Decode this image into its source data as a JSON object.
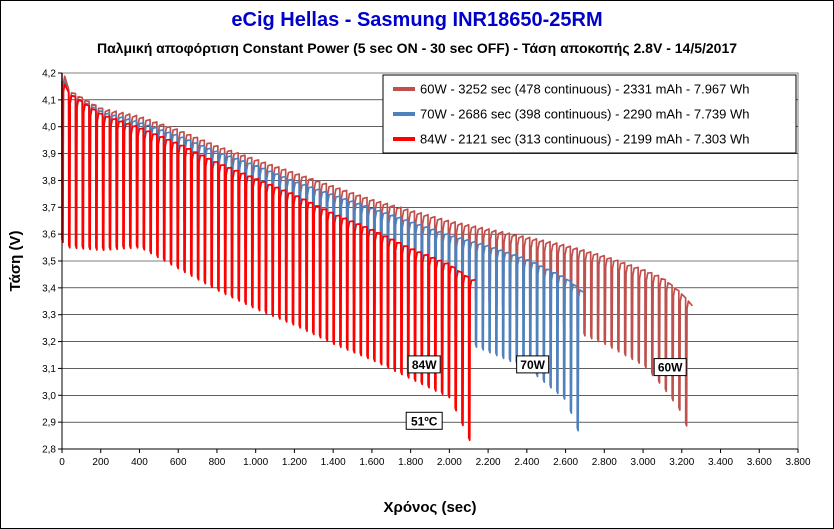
{
  "header": {
    "title": "eCig Hellas  - Sasmung INR18650-25RM",
    "subtitle": "Παλμική αποφόρτιση Constant Power (5 sec ON - 30 sec OFF) - Τάση αποκοπής 2.8V - 14/5/2017"
  },
  "chart_data": {
    "type": "line",
    "xlabel": "Χρόνος (sec)",
    "ylabel": "Τάση (V)",
    "xlim": [
      0,
      3800
    ],
    "ylim": [
      2.8,
      4.2
    ],
    "x_ticks": [
      "0",
      "200",
      "400",
      "600",
      "800",
      "1.000",
      "1.200",
      "1.400",
      "1.600",
      "1.800",
      "2.000",
      "2.200",
      "2.400",
      "2.600",
      "2.800",
      "3.000",
      "3.200",
      "3.400",
      "3.600",
      "3.800"
    ],
    "y_ticks": [
      "2,8",
      "2,9",
      "3,0",
      "3,1",
      "3,2",
      "3,3",
      "3,4",
      "3,5",
      "3,6",
      "3,7",
      "3,8",
      "3,9",
      "4,0",
      "4,1",
      "4,2"
    ],
    "grid": "horizontal",
    "legend_position": "top-right",
    "pulse_period_sec": 35,
    "series": [
      {
        "name": "60W - 3252 sec (478 continuous) - 2331 mAh - 7.967 Wh",
        "color": "#c0504d",
        "end_time_sec": 3252,
        "rest_curve": [
          [
            0,
            4.2
          ],
          [
            30,
            4.14
          ],
          [
            200,
            4.07
          ],
          [
            400,
            4.04
          ],
          [
            600,
            3.99
          ],
          [
            800,
            3.93
          ],
          [
            1000,
            3.88
          ],
          [
            1200,
            3.83
          ],
          [
            1400,
            3.78
          ],
          [
            1600,
            3.73
          ],
          [
            1800,
            3.69
          ],
          [
            2000,
            3.65
          ],
          [
            2200,
            3.62
          ],
          [
            2400,
            3.59
          ],
          [
            2600,
            3.56
          ],
          [
            2800,
            3.52
          ],
          [
            3000,
            3.47
          ],
          [
            3100,
            3.44
          ],
          [
            3200,
            3.38
          ],
          [
            3270,
            3.32
          ]
        ],
        "load_curve": [
          [
            0,
            3.95
          ],
          [
            30,
            3.93
          ],
          [
            200,
            3.86
          ],
          [
            400,
            3.82
          ],
          [
            600,
            3.76
          ],
          [
            800,
            3.7
          ],
          [
            1000,
            3.63
          ],
          [
            1200,
            3.58
          ],
          [
            1400,
            3.52
          ],
          [
            1600,
            3.47
          ],
          [
            1800,
            3.43
          ],
          [
            2000,
            3.38
          ],
          [
            2200,
            3.34
          ],
          [
            2400,
            3.3
          ],
          [
            2600,
            3.25
          ],
          [
            2800,
            3.19
          ],
          [
            3000,
            3.11
          ],
          [
            3100,
            3.03
          ],
          [
            3200,
            2.93
          ],
          [
            3250,
            2.82
          ]
        ]
      },
      {
        "name": "70W - 2686 sec (398 continuous) - 2290 mAh - 7.739 Wh",
        "color": "#4f81bd",
        "end_time_sec": 2686,
        "rest_curve": [
          [
            0,
            4.18
          ],
          [
            30,
            4.13
          ],
          [
            200,
            4.06
          ],
          [
            400,
            4.02
          ],
          [
            600,
            3.97
          ],
          [
            800,
            3.91
          ],
          [
            1000,
            3.86
          ],
          [
            1200,
            3.8
          ],
          [
            1400,
            3.75
          ],
          [
            1600,
            3.7
          ],
          [
            1800,
            3.65
          ],
          [
            2000,
            3.6
          ],
          [
            2200,
            3.56
          ],
          [
            2400,
            3.51
          ],
          [
            2600,
            3.44
          ],
          [
            2700,
            3.38
          ]
        ],
        "load_curve": [
          [
            0,
            3.87
          ],
          [
            30,
            3.82
          ],
          [
            200,
            3.74
          ],
          [
            400,
            3.7
          ],
          [
            600,
            3.65
          ],
          [
            800,
            3.58
          ],
          [
            1000,
            3.52
          ],
          [
            1200,
            3.46
          ],
          [
            1400,
            3.4
          ],
          [
            1600,
            3.34
          ],
          [
            1800,
            3.28
          ],
          [
            2000,
            3.22
          ],
          [
            2200,
            3.16
          ],
          [
            2400,
            3.1
          ],
          [
            2600,
            2.98
          ],
          [
            2686,
            2.82
          ]
        ]
      },
      {
        "name": "84W - 2121 sec (313 continuous) - 2199 mAh - 7.303 Wh",
        "color": "#ff0000",
        "end_time_sec": 2121,
        "rest_curve": [
          [
            0,
            4.17
          ],
          [
            30,
            4.13
          ],
          [
            200,
            4.05
          ],
          [
            400,
            4.0
          ],
          [
            600,
            3.94
          ],
          [
            800,
            3.87
          ],
          [
            1000,
            3.81
          ],
          [
            1200,
            3.75
          ],
          [
            1400,
            3.68
          ],
          [
            1600,
            3.62
          ],
          [
            1800,
            3.55
          ],
          [
            2000,
            3.49
          ],
          [
            2120,
            3.43
          ]
        ],
        "load_curve": [
          [
            0,
            3.57
          ],
          [
            30,
            3.55
          ],
          [
            200,
            3.54
          ],
          [
            400,
            3.55
          ],
          [
            600,
            3.47
          ],
          [
            800,
            3.39
          ],
          [
            1000,
            3.32
          ],
          [
            1200,
            3.26
          ],
          [
            1400,
            3.19
          ],
          [
            1600,
            3.13
          ],
          [
            1800,
            3.06
          ],
          [
            2000,
            2.99
          ],
          [
            2121,
            2.8
          ]
        ]
      }
    ],
    "annotations": [
      {
        "text": "84W",
        "x": 1870,
        "y": 3.115
      },
      {
        "text": "70W",
        "x": 2430,
        "y": 3.115
      },
      {
        "text": "60W",
        "x": 3140,
        "y": 3.105
      },
      {
        "text": "51ºC",
        "x": 1870,
        "y": 2.905
      }
    ]
  }
}
